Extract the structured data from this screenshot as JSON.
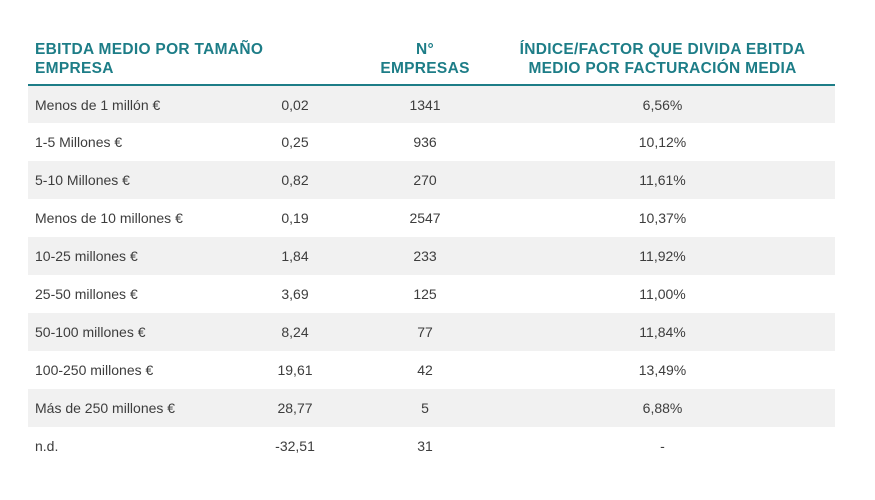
{
  "table": {
    "display_headers": [
      "EBITDA MEDIO POR TAMAÑO\nEMPRESA",
      "N°\nEMPRESAS",
      "ÍNDICE/FACTOR QUE DIVIDA EBITDA\nMEDIO POR FACTURACIÓN MEDIA"
    ]
  },
  "chart_data": {
    "type": "table",
    "headers": [
      "EBITDA MEDIO POR TAMAÑO EMPRESA",
      "N° EMPRESAS",
      "ÍNDICE/FACTOR QUE DIVIDA EBITDA MEDIO POR FACTURACIÓN MEDIA"
    ],
    "rows": [
      [
        "Menos de 1 millón €",
        "0,02",
        "1341",
        "6,56%"
      ],
      [
        "1-5 Millones €",
        "0,25",
        "936",
        "10,12%"
      ],
      [
        "5-10 Millones €",
        "0,82",
        "270",
        "11,61%"
      ],
      [
        "Menos de 10 millones €",
        "0,19",
        "2547",
        "10,37%"
      ],
      [
        "10-25 millones €",
        "1,84",
        "233",
        "11,92%"
      ],
      [
        "25-50 millones €",
        "3,69",
        "125",
        "11,00%"
      ],
      [
        "50-100 millones €",
        "8,24",
        "77",
        "11,84%"
      ],
      [
        "100-250 millones €",
        "19,61",
        "42",
        "13,49%"
      ],
      [
        "Más de 250 millones €",
        "28,77",
        "5",
        "6,88%"
      ],
      [
        "n.d.",
        "-32,51",
        "31",
        "-"
      ]
    ]
  },
  "colors": {
    "accent_teal": "#1d7d87",
    "row_stripe": "#f1f1f1",
    "body_text": "#3d3d3d",
    "page_background": "#ffffff"
  }
}
